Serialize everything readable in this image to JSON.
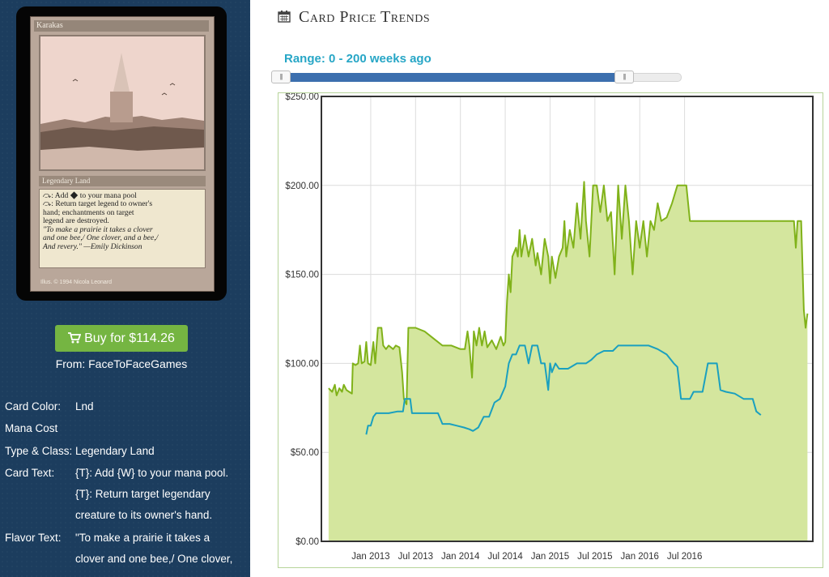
{
  "card": {
    "name": "Karakas",
    "type_line": "Legendary Land",
    "rules_text": "⤼: Add ◆ to your mana pool\n⤼: Return target legend to owner's\nhand; enchantments on target\nlegend are destroyed.",
    "flavor_text": "\"To make a prairie it takes a clover\nand one bee,/ One clover, and a bee,/\nAnd revery.\" —Emily Dickinson",
    "credit": "Illus. © 1994 Nicola Leonard"
  },
  "buy": {
    "label": "Buy for $114.26",
    "icon": "cart-icon",
    "from": "From: FaceToFaceGames",
    "color": "#75b542"
  },
  "details": [
    {
      "label": "Card Color:",
      "value": [
        "Lnd"
      ]
    },
    {
      "label": "Mana Cost",
      "value": [
        ""
      ]
    },
    {
      "label": "Type & Class:",
      "value": [
        "Legendary Land"
      ]
    },
    {
      "label": "Card Text:",
      "value": [
        "{T}: Add {W} to your mana pool.",
        "{T}: Return target legendary",
        "creature to its owner's hand."
      ]
    },
    {
      "label": "Flavor Text:",
      "value": [
        "\"To make a prairie it takes a",
        "clover and one bee,/ One clover,"
      ]
    }
  ],
  "trends": {
    "title": "Card Price Trends",
    "icon": "calendar-icon",
    "range_label": "Range: 0 - 200 weeks ago",
    "range": {
      "min": 0,
      "max": 200
    },
    "colors": {
      "accent": "#27a6c6",
      "slider": "#3c6fae",
      "retail": "#80b21a",
      "retail_fill": "#d4e69e",
      "buylist": "#1aa0bf"
    }
  },
  "chart_data": {
    "type": "area",
    "y_ticks": [
      "$0.00",
      "$50.00",
      "$100.00",
      "$150.00",
      "$200.00",
      "$250.00"
    ],
    "ylim": [
      0,
      250
    ],
    "x_ticks": [
      "Jan 2013",
      "Jul 2013",
      "Jan 2014",
      "Jul 2014",
      "Jan 2015",
      "Jul 2015",
      "Jan 2016",
      "Jul 2016"
    ],
    "grid": true,
    "series": [
      {
        "values": [
          [
            2012.53,
            86
          ],
          [
            2012.57,
            84
          ],
          [
            2012.6,
            88
          ],
          [
            2012.62,
            82
          ],
          [
            2012.65,
            86
          ],
          [
            2012.68,
            84
          ],
          [
            2012.7,
            88
          ],
          [
            2012.73,
            85
          ],
          [
            2012.76,
            84
          ],
          [
            2012.79,
            83
          ],
          [
            2012.8,
            100
          ],
          [
            2012.83,
            99
          ],
          [
            2012.86,
            100
          ],
          [
            2012.88,
            110
          ],
          [
            2012.9,
            100
          ],
          [
            2012.93,
            101
          ],
          [
            2012.95,
            112
          ],
          [
            2012.97,
            100
          ],
          [
            2013.0,
            99
          ],
          [
            2013.03,
            112
          ],
          [
            2013.05,
            100
          ],
          [
            2013.08,
            120
          ],
          [
            2013.12,
            120
          ],
          [
            2013.14,
            110
          ],
          [
            2013.17,
            108
          ],
          [
            2013.2,
            110
          ],
          [
            2013.25,
            108
          ],
          [
            2013.28,
            110
          ],
          [
            2013.32,
            109
          ],
          [
            2013.35,
            95
          ],
          [
            2013.37,
            80
          ],
          [
            2013.4,
            77
          ],
          [
            2013.42,
            120
          ],
          [
            2013.5,
            120
          ],
          [
            2013.6,
            118
          ],
          [
            2013.7,
            114
          ],
          [
            2013.8,
            110
          ],
          [
            2013.9,
            110
          ],
          [
            2014.0,
            108
          ],
          [
            2014.05,
            108
          ],
          [
            2014.08,
            118
          ],
          [
            2014.1,
            110
          ],
          [
            2014.13,
            92
          ],
          [
            2014.15,
            118
          ],
          [
            2014.18,
            110
          ],
          [
            2014.21,
            120
          ],
          [
            2014.24,
            110
          ],
          [
            2014.27,
            118
          ],
          [
            2014.3,
            109
          ],
          [
            2014.35,
            113
          ],
          [
            2014.4,
            108
          ],
          [
            2014.45,
            115
          ],
          [
            2014.48,
            110
          ],
          [
            2014.5,
            112
          ],
          [
            2014.52,
            135
          ],
          [
            2014.54,
            150
          ],
          [
            2014.56,
            140
          ],
          [
            2014.58,
            160
          ],
          [
            2014.62,
            165
          ],
          [
            2014.64,
            160
          ],
          [
            2014.66,
            175
          ],
          [
            2014.68,
            160
          ],
          [
            2014.72,
            172
          ],
          [
            2014.76,
            160
          ],
          [
            2014.8,
            170
          ],
          [
            2014.84,
            155
          ],
          [
            2014.86,
            162
          ],
          [
            2014.9,
            150
          ],
          [
            2014.94,
            170
          ],
          [
            2014.98,
            160
          ],
          [
            2015.0,
            145
          ],
          [
            2015.02,
            160
          ],
          [
            2015.06,
            148
          ],
          [
            2015.1,
            160
          ],
          [
            2015.14,
            165
          ],
          [
            2015.16,
            180
          ],
          [
            2015.18,
            160
          ],
          [
            2015.22,
            175
          ],
          [
            2015.26,
            165
          ],
          [
            2015.3,
            190
          ],
          [
            2015.34,
            170
          ],
          [
            2015.38,
            202
          ],
          [
            2015.4,
            180
          ],
          [
            2015.44,
            160
          ],
          [
            2015.48,
            200
          ],
          [
            2015.52,
            200
          ],
          [
            2015.56,
            185
          ],
          [
            2015.6,
            200
          ],
          [
            2015.64,
            180
          ],
          [
            2015.68,
            185
          ],
          [
            2015.72,
            150
          ],
          [
            2015.76,
            200
          ],
          [
            2015.8,
            170
          ],
          [
            2015.84,
            200
          ],
          [
            2015.88,
            180
          ],
          [
            2015.92,
            150
          ],
          [
            2015.96,
            180
          ],
          [
            2016.0,
            165
          ],
          [
            2016.04,
            180
          ],
          [
            2016.08,
            160
          ],
          [
            2016.12,
            180
          ],
          [
            2016.16,
            175
          ],
          [
            2016.2,
            190
          ],
          [
            2016.24,
            180
          ],
          [
            2016.3,
            182
          ],
          [
            2016.36,
            190
          ],
          [
            2016.42,
            200
          ],
          [
            2016.48,
            200
          ],
          [
            2016.52,
            200
          ],
          [
            2016.56,
            180
          ],
          [
            2016.7,
            180
          ],
          [
            2016.8,
            180
          ],
          [
            2016.9,
            180
          ],
          [
            2017.0,
            180
          ],
          [
            2017.2,
            180
          ],
          [
            2017.5,
            180
          ],
          [
            2017.72,
            180
          ],
          [
            2017.74,
            165
          ],
          [
            2017.76,
            180
          ],
          [
            2017.8,
            180
          ],
          [
            2017.83,
            130
          ],
          [
            2017.85,
            120
          ],
          [
            2017.87,
            128
          ]
        ]
      },
      {
        "values": [
          [
            2012.95,
            60
          ],
          [
            2012.97,
            65
          ],
          [
            2013.0,
            65
          ],
          [
            2013.03,
            70
          ],
          [
            2013.06,
            72
          ],
          [
            2013.1,
            72
          ],
          [
            2013.2,
            72
          ],
          [
            2013.3,
            73
          ],
          [
            2013.36,
            73
          ],
          [
            2013.38,
            80
          ],
          [
            2013.44,
            80
          ],
          [
            2013.46,
            72
          ],
          [
            2013.6,
            72
          ],
          [
            2013.75,
            72
          ],
          [
            2013.8,
            66
          ],
          [
            2013.88,
            66
          ],
          [
            2013.96,
            65
          ],
          [
            2014.04,
            64
          ],
          [
            2014.1,
            63
          ],
          [
            2014.14,
            62
          ],
          [
            2014.2,
            64
          ],
          [
            2014.26,
            70
          ],
          [
            2014.32,
            70
          ],
          [
            2014.38,
            78
          ],
          [
            2014.44,
            80
          ],
          [
            2014.5,
            87
          ],
          [
            2014.54,
            100
          ],
          [
            2014.58,
            105
          ],
          [
            2014.62,
            105
          ],
          [
            2014.66,
            110
          ],
          [
            2014.72,
            110
          ],
          [
            2014.76,
            100
          ],
          [
            2014.8,
            110
          ],
          [
            2014.86,
            110
          ],
          [
            2014.9,
            100
          ],
          [
            2014.94,
            100
          ],
          [
            2014.98,
            85
          ],
          [
            2015.0,
            100
          ],
          [
            2015.02,
            95
          ],
          [
            2015.06,
            100
          ],
          [
            2015.1,
            97
          ],
          [
            2015.2,
            97
          ],
          [
            2015.3,
            100
          ],
          [
            2015.4,
            100
          ],
          [
            2015.46,
            102
          ],
          [
            2015.52,
            105
          ],
          [
            2015.6,
            107
          ],
          [
            2015.7,
            107
          ],
          [
            2015.76,
            110
          ],
          [
            2015.9,
            110
          ],
          [
            2016.0,
            110
          ],
          [
            2016.1,
            110
          ],
          [
            2016.2,
            108
          ],
          [
            2016.3,
            105
          ],
          [
            2016.38,
            100
          ],
          [
            2016.42,
            98
          ],
          [
            2016.46,
            80
          ],
          [
            2016.52,
            80
          ],
          [
            2016.56,
            80
          ],
          [
            2016.6,
            84
          ],
          [
            2016.7,
            84
          ],
          [
            2016.76,
            100
          ],
          [
            2016.86,
            100
          ],
          [
            2016.9,
            85
          ],
          [
            2016.96,
            84
          ],
          [
            2017.06,
            83
          ],
          [
            2017.16,
            80
          ],
          [
            2017.26,
            80
          ],
          [
            2017.3,
            73
          ],
          [
            2017.35,
            71
          ]
        ]
      }
    ]
  }
}
